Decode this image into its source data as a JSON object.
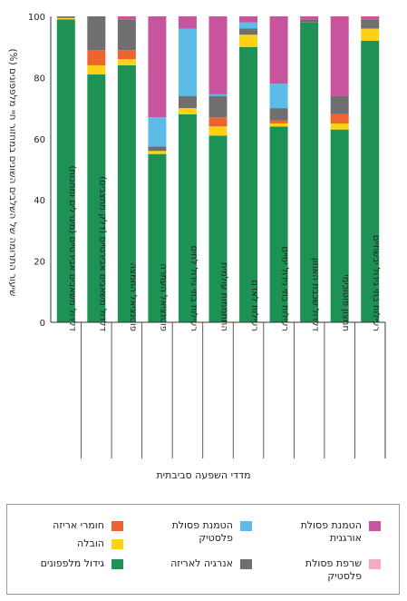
{
  "chart_data": {
    "type": "bar",
    "stacked": true,
    "ylabel": "שיעור התרומה של השלבים השונים במחזור חיי מלפפונים (%)",
    "xlabel": "מדדי השפעה סביבתית",
    "ylim": [
      0,
      100
    ],
    "yticks": [
      0,
      20,
      40,
      60,
      80,
      100
    ],
    "grid": false,
    "legend_position": "bottom",
    "categories": [
      "רעילות בתי גידול יבשתיים",
      "חמצון פוטוכימי",
      "דלדול שכבת האוזון",
      "רעילות בתי גידול ימיים",
      "רעילות לאדם",
      "התחממות עולמית",
      "רעילות בתי גידול לחים",
      "פוטנציאל העתרה",
      "פוטנציאל החמצה",
      "דלדול משאבים אבירטיים (דלק מחצבים)",
      "דלדול משאבים אבירטיים (מינרלים ומתכות)"
    ],
    "series": [
      {
        "name": "גידול מלפפונים",
        "color": "#1e9255",
        "values": [
          92,
          63,
          98,
          64,
          90,
          61,
          68,
          55,
          84,
          81,
          99
        ]
      },
      {
        "name": "הובלה",
        "color": "#fcd116",
        "values": [
          4,
          2,
          0,
          1,
          4,
          3,
          2,
          1,
          2,
          3,
          0.5
        ]
      },
      {
        "name": "חומרי אריזה",
        "color": "#ec6530",
        "values": [
          0,
          3,
          0,
          1,
          0,
          3,
          0,
          0,
          3,
          5,
          0
        ]
      },
      {
        "name": "אנרגיה לאריזה",
        "color": "#6f6f6f",
        "values": [
          3,
          6,
          1,
          4,
          2,
          7,
          4,
          1.5,
          10,
          11,
          0.5
        ]
      },
      {
        "name": "הטמנת פסולת פלסטיק",
        "color": "#5cbce8",
        "values": [
          0,
          0,
          0,
          8,
          2,
          0.5,
          22,
          9.5,
          0,
          0,
          0
        ]
      },
      {
        "name": "שרפת פסולת פלסטיק",
        "color": "#f5a9c7",
        "values": [
          0,
          0,
          0,
          0,
          0,
          0,
          0,
          0,
          0,
          0,
          0
        ]
      },
      {
        "name": "הטמנת פסולת אורגנית",
        "color": "#c9549e",
        "values": [
          1,
          26,
          1,
          22,
          2,
          25.5,
          4,
          33,
          1,
          0,
          0
        ]
      }
    ]
  },
  "legend": {
    "items": [
      {
        "label": "הטמנת פסולת\nאורגנית",
        "color": "#c9549e"
      },
      {
        "label": "הטמנת פסולת\nפלסטיק",
        "color": "#5cbce8"
      },
      {
        "label": "חומרי אריזה",
        "color": "#ec6530"
      },
      {
        "label": "שרפת פסולת\nפלסטיק",
        "color": "#f5a9c7"
      },
      {
        "label": "אנרגיה לאריזה",
        "color": "#6f6f6f"
      },
      {
        "label": "הובלה",
        "color": "#fcd116"
      },
      {
        "label": "גידול מלפפונים",
        "color": "#1e9255"
      }
    ]
  }
}
